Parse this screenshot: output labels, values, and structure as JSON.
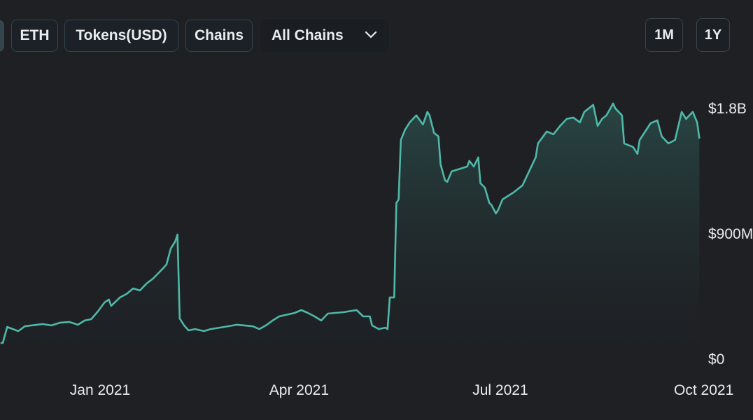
{
  "toolbar": {
    "buttons": [
      "ETH",
      "Tokens(USD)",
      "Chains"
    ],
    "chain_select": {
      "value": "All Chains"
    },
    "ranges": [
      "1M",
      "1Y"
    ]
  },
  "colors": {
    "line": "#4fb8a8",
    "background": "#1e2024",
    "fill_top": "#2a4a48"
  },
  "chart_data": {
    "type": "area",
    "title": "",
    "xlabel": "",
    "ylabel": "",
    "x_unit": "days since 2021-01-01",
    "y_unit": "USD millions",
    "ylim": [
      0,
      1800
    ],
    "y_ticks": [
      {
        "value": 0,
        "label": "$0"
      },
      {
        "value": 900,
        "label": "$900M"
      },
      {
        "value": 1800,
        "label": "$1.8B"
      }
    ],
    "x_ticks": [
      {
        "value": 0,
        "label": "Jan 2021"
      },
      {
        "value": 90,
        "label": "Apr 2021"
      },
      {
        "value": 181,
        "label": "Jul 2021"
      },
      {
        "value": 273,
        "label": "Oct 2021"
      }
    ],
    "grid": false,
    "points": [
      [
        -45,
        126
      ],
      [
        -44,
        126
      ],
      [
        -42,
        241
      ],
      [
        -37,
        211
      ],
      [
        -34,
        246
      ],
      [
        -26,
        262
      ],
      [
        -22,
        252
      ],
      [
        -18,
        272
      ],
      [
        -14,
        277
      ],
      [
        -10,
        257
      ],
      [
        -7,
        287
      ],
      [
        -4,
        297
      ],
      [
        -1,
        352
      ],
      [
        2,
        417
      ],
      [
        4,
        438
      ],
      [
        5,
        392
      ],
      [
        9,
        453
      ],
      [
        12,
        478
      ],
      [
        15,
        518
      ],
      [
        18,
        503
      ],
      [
        21,
        553
      ],
      [
        24,
        589
      ],
      [
        28,
        654
      ],
      [
        30,
        689
      ],
      [
        32,
        805
      ],
      [
        34,
        855
      ],
      [
        35,
        905
      ],
      [
        36,
        302
      ],
      [
        38,
        252
      ],
      [
        40,
        216
      ],
      [
        43,
        226
      ],
      [
        47,
        211
      ],
      [
        50,
        226
      ],
      [
        56,
        241
      ],
      [
        62,
        257
      ],
      [
        69,
        246
      ],
      [
        72,
        226
      ],
      [
        75,
        252
      ],
      [
        78,
        287
      ],
      [
        81,
        317
      ],
      [
        88,
        342
      ],
      [
        91,
        362
      ],
      [
        94,
        342
      ],
      [
        97,
        317
      ],
      [
        100,
        287
      ],
      [
        103,
        337
      ],
      [
        110,
        347
      ],
      [
        116,
        362
      ],
      [
        119,
        317
      ],
      [
        122,
        317
      ],
      [
        123,
        252
      ],
      [
        126,
        226
      ],
      [
        129,
        236
      ],
      [
        130,
        226
      ],
      [
        131,
        453
      ],
      [
        133,
        453
      ],
      [
        134,
        1132
      ],
      [
        135,
        1157
      ],
      [
        136,
        1584
      ],
      [
        138,
        1660
      ],
      [
        140,
        1710
      ],
      [
        143,
        1761
      ],
      [
        146,
        1695
      ],
      [
        148,
        1786
      ],
      [
        149,
        1761
      ],
      [
        151,
        1635
      ],
      [
        153,
        1610
      ],
      [
        154,
        1408
      ],
      [
        156,
        1293
      ],
      [
        157,
        1283
      ],
      [
        159,
        1358
      ],
      [
        164,
        1383
      ],
      [
        166,
        1393
      ],
      [
        167,
        1434
      ],
      [
        169,
        1393
      ],
      [
        171,
        1459
      ],
      [
        172,
        1273
      ],
      [
        174,
        1242
      ],
      [
        176,
        1132
      ],
      [
        177,
        1117
      ],
      [
        179,
        1056
      ],
      [
        180,
        1081
      ],
      [
        182,
        1157
      ],
      [
        187,
        1207
      ],
      [
        191,
        1258
      ],
      [
        194,
        1358
      ],
      [
        197,
        1459
      ],
      [
        198,
        1559
      ],
      [
        202,
        1645
      ],
      [
        205,
        1625
      ],
      [
        208,
        1685
      ],
      [
        211,
        1735
      ],
      [
        214,
        1745
      ],
      [
        217,
        1710
      ],
      [
        219,
        1786
      ],
      [
        223,
        1836
      ],
      [
        225,
        1685
      ],
      [
        227,
        1735
      ],
      [
        229,
        1761
      ],
      [
        232,
        1846
      ],
      [
        233,
        1811
      ],
      [
        236,
        1761
      ],
      [
        237,
        1559
      ],
      [
        241,
        1534
      ],
      [
        243,
        1484
      ],
      [
        244,
        1584
      ],
      [
        249,
        1705
      ],
      [
        252,
        1725
      ],
      [
        254,
        1610
      ],
      [
        257,
        1559
      ],
      [
        260,
        1584
      ],
      [
        263,
        1786
      ],
      [
        265,
        1735
      ],
      [
        268,
        1786
      ],
      [
        270,
        1710
      ],
      [
        271,
        1594
      ]
    ]
  }
}
